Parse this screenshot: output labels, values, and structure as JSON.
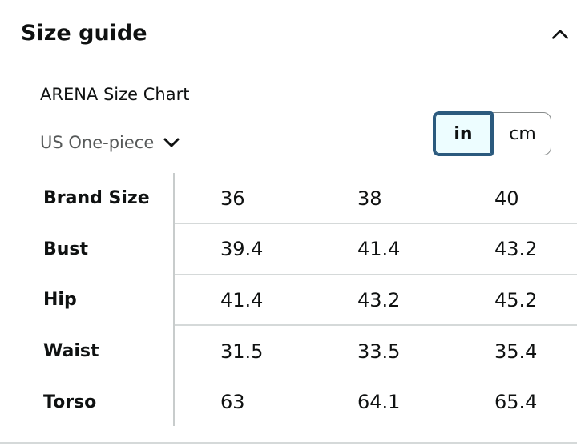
{
  "header": {
    "title": "Size guide",
    "collapse_icon": "chevron-up-icon"
  },
  "chart": {
    "name": "ARENA Size Chart",
    "fit_selector": {
      "selected": "US One-piece",
      "icon": "chevron-down-icon"
    },
    "units": {
      "options": [
        "in",
        "cm"
      ],
      "selected": "in"
    }
  },
  "table": {
    "rows": [
      {
        "label": "Brand Size",
        "values": [
          "36",
          "38",
          "40"
        ]
      },
      {
        "label": "Bust",
        "values": [
          "39.4",
          "41.4",
          "43.2"
        ]
      },
      {
        "label": "Hip",
        "values": [
          "41.4",
          "43.2",
          "45.2"
        ]
      },
      {
        "label": "Waist",
        "values": [
          "31.5",
          "33.5",
          "35.4"
        ]
      },
      {
        "label": "Torso",
        "values": [
          "63",
          "64.1",
          "65.4"
        ]
      }
    ]
  },
  "colors": {
    "text": "#0f1111",
    "muted_text": "#565959",
    "selected_unit_border": "#2b5a7e",
    "selected_unit_bg": "#edfdff",
    "divider": "#d5d9d9"
  }
}
